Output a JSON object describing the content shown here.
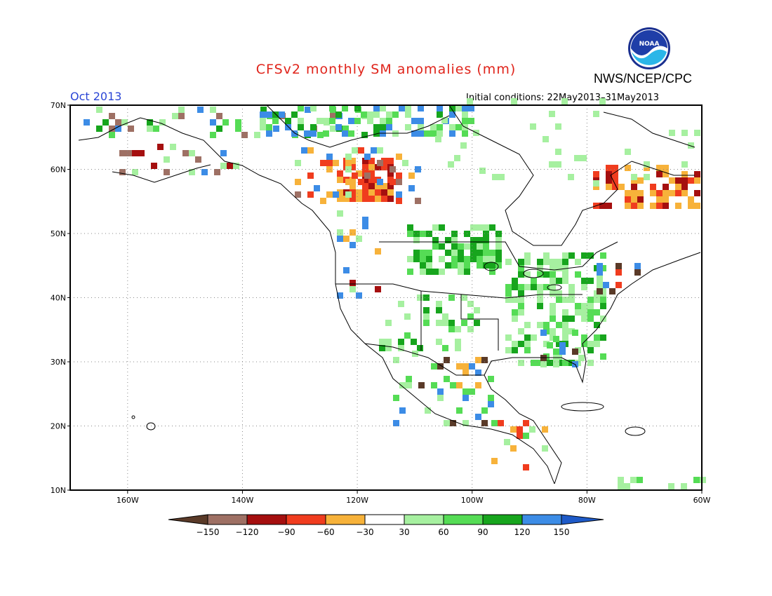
{
  "title": "CFSv2 monthly SM anomalies (mm)",
  "agency": "NWS/NCEP/CPC",
  "logo_text": "NOAA",
  "period": "Oct 2013",
  "initial_conditions": "Initial conditions: 22May2013–31May2013",
  "lat_labels": [
    "70N",
    "60N",
    "50N",
    "40N",
    "30N",
    "20N",
    "10N"
  ],
  "lon_labels": [
    "160W",
    "140W",
    "120W",
    "100W",
    "80W",
    "60W"
  ],
  "colorbar": {
    "labels": [
      "−150",
      "−120",
      "−90",
      "−60",
      "−30",
      "30",
      "60",
      "90",
      "120",
      "150"
    ],
    "colors": [
      "#5a3a28",
      "#9e7064",
      "#a50f0f",
      "#f03c1e",
      "#f7b23a",
      "#ffffff",
      "#a6f0a0",
      "#55dc55",
      "#17a51d",
      "#3c8ce6",
      "#1e5ac8"
    ]
  },
  "colors": {
    "frame": "#000000",
    "coast": "#000000",
    "grid": "#808080"
  }
}
